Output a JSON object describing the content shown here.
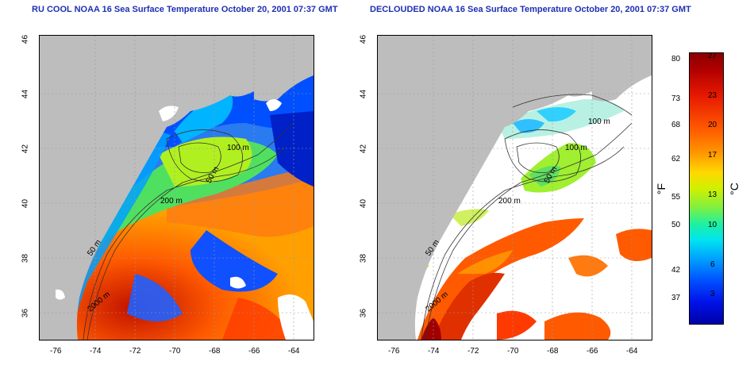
{
  "titles": {
    "left": "RU COOL NOAA 16 Sea Surface Temperature October 20, 2001 07:37 GMT",
    "right": "DECLOUDED NOAA 16 Sea Surface Temperature October 20, 2001 07:37 GMT"
  },
  "axes": {
    "longitude_ticks": [
      "-76",
      "-74",
      "-72",
      "-70",
      "-68",
      "-66",
      "-64"
    ],
    "latitude_ticks": [
      "46",
      "44",
      "42",
      "40",
      "38",
      "36"
    ]
  },
  "contour_labels": {
    "left": [
      "100 m",
      "50 m",
      "200 m",
      "50 m",
      "2000 m"
    ],
    "right": [
      "100 m",
      "100 m",
      "50 m",
      "200 m",
      "50 m",
      "2000 m"
    ]
  },
  "colorbar": {
    "fahrenheit_ticks": [
      "80",
      "73",
      "68",
      "62",
      "55",
      "50",
      "42",
      "37"
    ],
    "celsius_ticks": [
      "27",
      "23",
      "20",
      "17",
      "13",
      "10",
      "6",
      "3"
    ],
    "fahrenheit_unit": "°F",
    "celsius_unit": "°C"
  },
  "colors": {
    "land": "#bdbdbd",
    "title": "#1f2fb4",
    "warm": "#d42000",
    "cold": "#0030e0"
  }
}
